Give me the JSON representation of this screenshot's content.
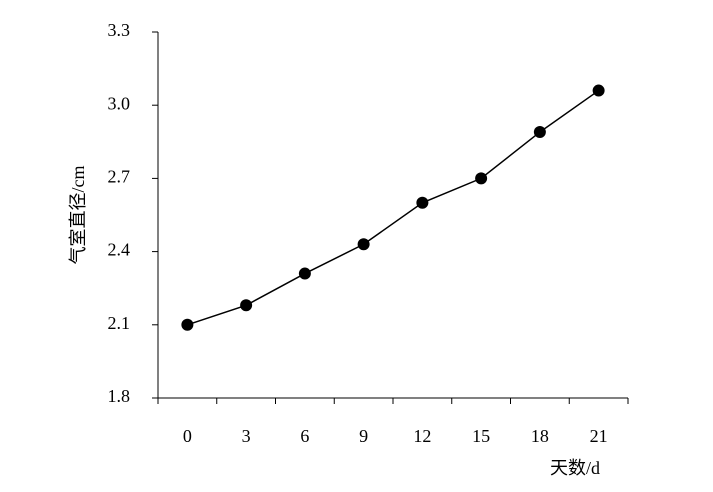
{
  "chart_data": {
    "type": "line",
    "x_label": "天数/d",
    "y_label": "气室直径/cm",
    "categories": [
      "0",
      "3",
      "6",
      "9",
      "12",
      "15",
      "18",
      "21"
    ],
    "series": [
      {
        "color": "#000000",
        "values": [
          2.1,
          2.18,
          2.31,
          2.43,
          2.6,
          2.7,
          2.89,
          3.06
        ]
      }
    ],
    "ylim": [
      1.8,
      3.3
    ],
    "yticks": [
      1.8,
      2.1,
      2.4,
      2.7,
      {
        "value": 3,
        "label": "3.0"
      },
      3.3
    ],
    "grid": false
  }
}
